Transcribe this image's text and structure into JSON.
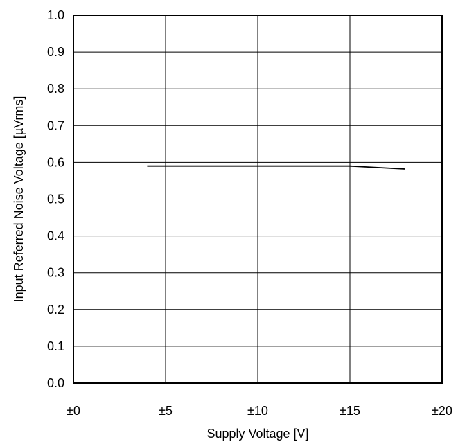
{
  "chart_data": {
    "type": "line",
    "title": "",
    "xlabel": "Supply Voltage [V]",
    "ylabel": "Input Referred Noise Voltage [µVrms]",
    "xlim": [
      0,
      20
    ],
    "ylim": [
      0.0,
      1.0
    ],
    "x_ticks": [
      0,
      5,
      10,
      15,
      20
    ],
    "x_tick_labels": [
      "±0",
      "±5",
      "±10",
      "±15",
      "±20"
    ],
    "y_ticks": [
      0.0,
      0.1,
      0.2,
      0.3,
      0.4,
      0.5,
      0.6,
      0.7,
      0.8,
      0.9,
      1.0
    ],
    "y_tick_labels": [
      "0.0",
      "0.1",
      "0.2",
      "0.3",
      "0.4",
      "0.5",
      "0.6",
      "0.7",
      "0.8",
      "0.9",
      "1.0"
    ],
    "grid": true,
    "legend": "none",
    "series": [
      {
        "x": [
          4,
          5,
          10,
          15,
          18
        ],
        "y": [
          0.59,
          0.59,
          0.59,
          0.59,
          0.582
        ],
        "color": "#000000"
      }
    ]
  }
}
